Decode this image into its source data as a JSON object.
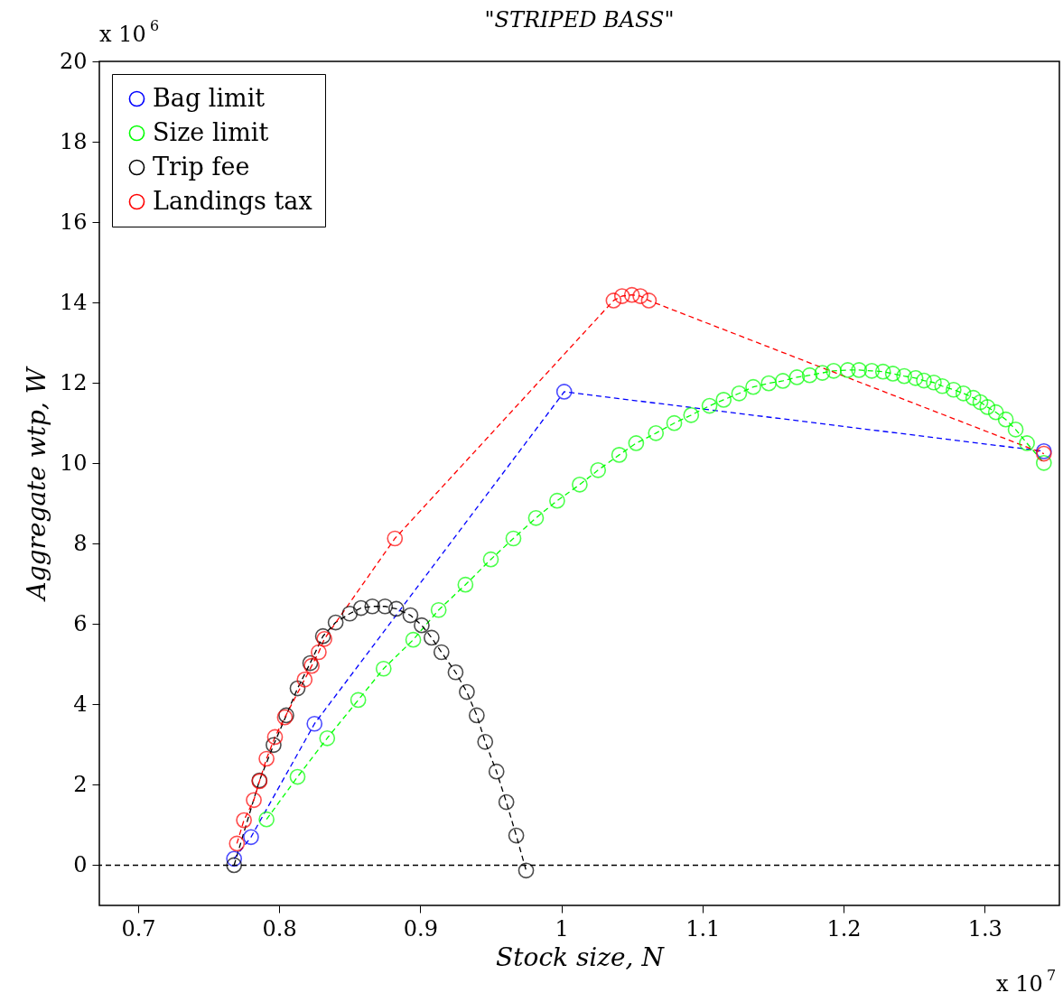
{
  "chart_data": {
    "type": "line",
    "title": "\"STRIPED BASS\"",
    "xlabel": "Stock size, N",
    "ylabel": "Aggregate wtp, W",
    "annotations": [
      "x 10$^{6}$",
      "x 10$^{7}$"
    ],
    "xlim": [
      0.6725,
      1.353
    ],
    "ylim": [
      -1,
      20
    ],
    "xticks": [
      0.7,
      0.8,
      0.9,
      1,
      1.1,
      1.2,
      1.3
    ],
    "yticks": [
      0,
      2,
      4,
      6,
      8,
      10,
      12,
      14,
      16,
      18,
      20
    ],
    "grid": false,
    "legend": "top left",
    "marker": "circle",
    "line_style": "dashed",
    "ref_lines": [
      {
        "axis": "y",
        "value": 0,
        "color": "#000000",
        "line_style": "dashed"
      }
    ],
    "series": [
      {
        "name": "Bag limit",
        "color": "#0000ff",
        "x": [
          0.768,
          0.78,
          0.825,
          1.002,
          1.342
        ],
        "values": [
          0.16,
          0.7,
          3.52,
          11.78,
          10.3
        ]
      },
      {
        "name": "Size limit",
        "color": "#00ff00",
        "x": [
          0.791,
          0.813,
          0.834,
          0.856,
          0.874,
          0.895,
          0.913,
          0.932,
          0.95,
          0.966,
          0.982,
          0.997,
          1.013,
          1.026,
          1.041,
          1.053,
          1.067,
          1.08,
          1.092,
          1.105,
          1.115,
          1.126,
          1.136,
          1.147,
          1.157,
          1.167,
          1.176,
          1.185,
          1.193,
          1.203,
          1.211,
          1.22,
          1.228,
          1.235,
          1.243,
          1.251,
          1.257,
          1.264,
          1.27,
          1.278,
          1.285,
          1.292,
          1.297,
          1.302,
          1.308,
          1.315,
          1.322,
          1.33,
          1.342
        ],
        "values": [
          1.14,
          2.2,
          3.16,
          4.11,
          4.89,
          5.61,
          6.35,
          6.98,
          7.61,
          8.13,
          8.64,
          9.07,
          9.47,
          9.83,
          10.21,
          10.5,
          10.75,
          11.0,
          11.2,
          11.43,
          11.58,
          11.74,
          11.9,
          11.99,
          12.05,
          12.14,
          12.19,
          12.25,
          12.3,
          12.32,
          12.32,
          12.3,
          12.28,
          12.23,
          12.17,
          12.12,
          12.06,
          12.01,
          11.92,
          11.83,
          11.74,
          11.63,
          11.52,
          11.4,
          11.27,
          11.09,
          10.84,
          10.5,
          10.01
        ]
      },
      {
        "name": "Trip fee",
        "color": "#000000",
        "x": [
          0.768,
          0.786,
          0.796,
          0.805,
          0.813,
          0.822,
          0.831,
          0.84,
          0.85,
          0.858,
          0.866,
          0.875,
          0.883,
          0.893,
          0.901,
          0.908,
          0.915,
          0.925,
          0.933,
          0.94,
          0.946,
          0.954,
          0.961,
          0.968,
          0.975
        ],
        "values": [
          0,
          2.11,
          2.99,
          3.73,
          4.4,
          5.03,
          5.7,
          6.04,
          6.26,
          6.4,
          6.44,
          6.44,
          6.38,
          6.22,
          5.97,
          5.66,
          5.3,
          4.8,
          4.31,
          3.73,
          3.07,
          2.33,
          1.57,
          0.74,
          -0.13
        ]
      },
      {
        "name": "Landings tax",
        "color": "#ff0000",
        "x": [
          0.77,
          0.775,
          0.782,
          0.786,
          0.791,
          0.797,
          0.804,
          0.818,
          0.823,
          0.828,
          0.832,
          0.882,
          1.037,
          1.043,
          1.05,
          1.056,
          1.062,
          1.342
        ],
        "values": [
          0.54,
          1.12,
          1.62,
          2.09,
          2.65,
          3.19,
          3.68,
          4.62,
          4.96,
          5.3,
          5.63,
          8.13,
          14.05,
          14.16,
          14.19,
          14.16,
          14.05,
          10.24
        ]
      }
    ]
  }
}
